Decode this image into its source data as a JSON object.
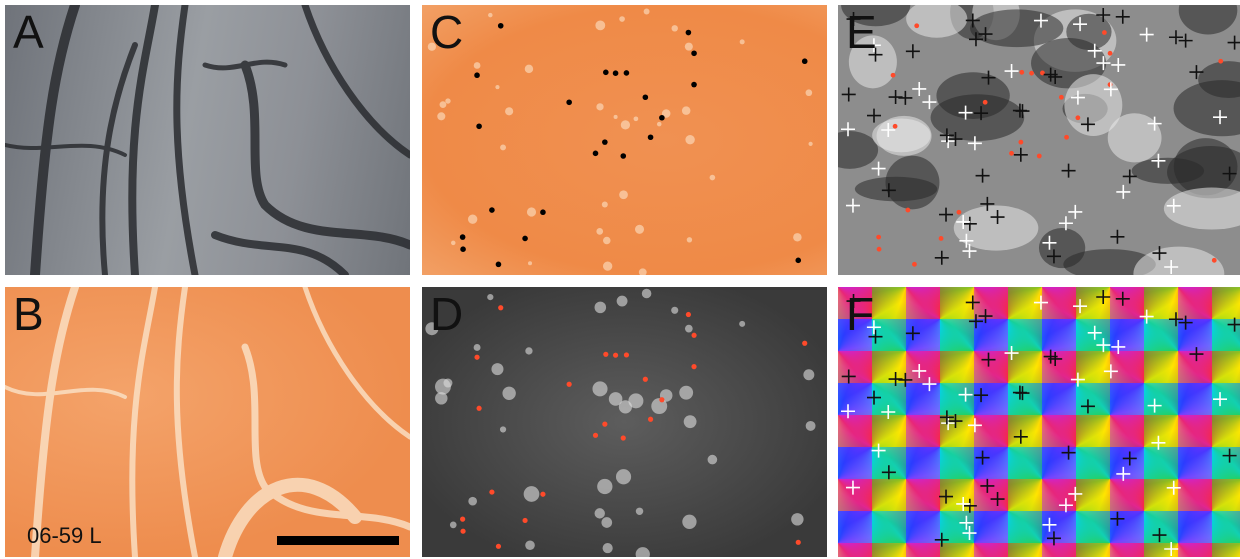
{
  "panels": [
    {
      "label": "A"
    },
    {
      "label": "B",
      "note": "06-59 L"
    },
    {
      "label": "C"
    },
    {
      "label": "D"
    },
    {
      "label": "E"
    },
    {
      "label": "F"
    }
  ]
}
